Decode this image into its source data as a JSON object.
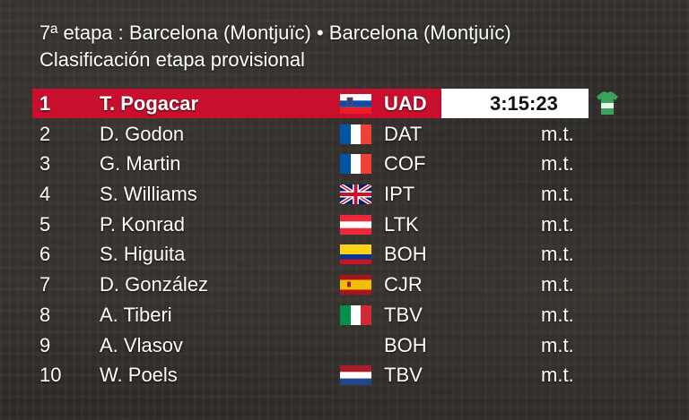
{
  "header": {
    "stage": "7ª etapa : Barcelona (Montjuïc) • Barcelona (Montjuïc)",
    "classification": "Clasificación etapa provisional"
  },
  "colors": {
    "leader_red": "#c8102e",
    "text": "#ffffff"
  },
  "rows": [
    {
      "pos": "1",
      "name": "T. Pogacar",
      "flag": "slovenia-flag",
      "team": "UAD",
      "time": "3:15:23",
      "jersey": "green-leader-jersey-icon"
    },
    {
      "pos": "2",
      "name": "D. Godon",
      "flag": "france-flag",
      "team": "DAT",
      "time": "m.t."
    },
    {
      "pos": "3",
      "name": "G. Martin",
      "flag": "france-flag",
      "team": "COF",
      "time": "m.t."
    },
    {
      "pos": "4",
      "name": "S. Williams",
      "flag": "uk-flag",
      "team": "IPT",
      "time": "m.t."
    },
    {
      "pos": "5",
      "name": "P. Konrad",
      "flag": "austria-flag",
      "team": "LTK",
      "time": "m.t."
    },
    {
      "pos": "6",
      "name": "S. Higuita",
      "flag": "colombia-flag",
      "team": "BOH",
      "time": "m.t."
    },
    {
      "pos": "7",
      "name": "D. González",
      "flag": "spain-flag",
      "team": "CJR",
      "time": "m.t."
    },
    {
      "pos": "8",
      "name": "A. Tiberi",
      "flag": "italy-flag",
      "team": "TBV",
      "time": "m.t."
    },
    {
      "pos": "9",
      "name": "A. Vlasov",
      "flag": "",
      "team": "BOH",
      "time": "m.t."
    },
    {
      "pos": "10",
      "name": "W. Poels",
      "flag": "netherlands-flag",
      "team": "TBV",
      "time": "m.t."
    }
  ]
}
